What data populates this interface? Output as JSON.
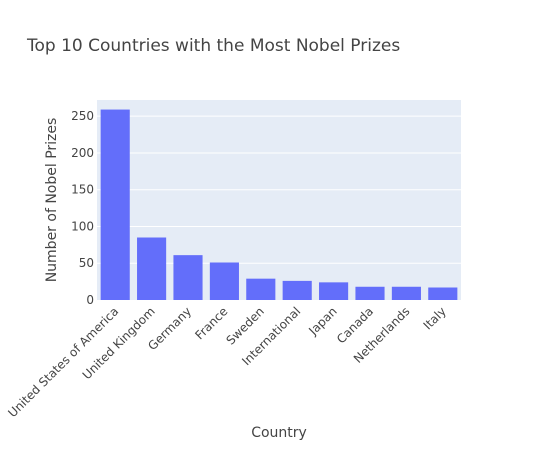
{
  "chart_data": {
    "type": "bar",
    "title": "Top 10 Countries with the Most Nobel Prizes",
    "xlabel": "Country",
    "ylabel": "Number of Nobel Prizes",
    "categories": [
      "United States of America",
      "United Kingdom",
      "Germany",
      "France",
      "Sweden",
      "International",
      "Japan",
      "Canada",
      "Netherlands",
      "Italy"
    ],
    "values": [
      259,
      85,
      61,
      51,
      29,
      26,
      24,
      18,
      18,
      17
    ],
    "ylim": [
      0,
      272
    ],
    "yticks": [
      0,
      50,
      100,
      150,
      200,
      250
    ],
    "grid": true,
    "legend": "none",
    "colors": {
      "bar": "#636efa",
      "plot_background": "#e5ecf6",
      "grid": "#ffffff",
      "text": "#444444"
    }
  }
}
